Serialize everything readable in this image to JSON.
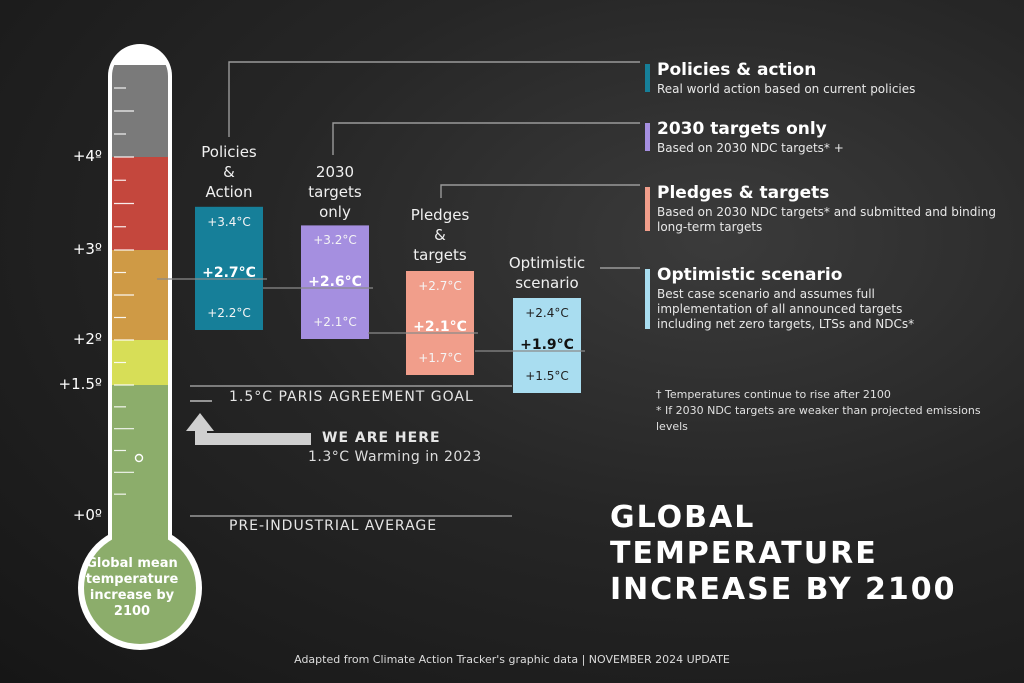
{
  "chart_data": {
    "type": "bar",
    "title": "GLOBAL\nTEMPERATURE\nINCREASE BY 2100",
    "ylim": [
      0,
      5
    ],
    "y_ticks": [
      {
        "value": 0,
        "label": "+0º"
      },
      {
        "value": 1.5,
        "label": "+1.5º"
      },
      {
        "value": 2,
        "label": "+2º"
      },
      {
        "value": 3,
        "label": "+3º"
      },
      {
        "value": 4,
        "label": "+4º"
      }
    ],
    "bands": [
      {
        "from": 0,
        "to": 1.5,
        "color": "#8cad6b"
      },
      {
        "from": 1.5,
        "to": 2,
        "color": "#d7de57"
      },
      {
        "from": 2,
        "to": 3,
        "color": "#cf9a45"
      },
      {
        "from": 3,
        "to": 4,
        "color": "#c4473d"
      },
      {
        "from": 4,
        "to": 5,
        "color": "#7a7a7a"
      }
    ],
    "thermometer_label": "Global mean\ntemperature\nincrease by\n2100",
    "scenarios": [
      {
        "title": "Policies\n&\nAction",
        "low": 2.2,
        "mid": 2.7,
        "high": 3.4,
        "low_label": "+2.2°C",
        "mid_label": "+2.7°C",
        "high_label": "+3.4°C",
        "color": "#167f99"
      },
      {
        "title": "2030\ntargets\nonly",
        "low": 2.1,
        "mid": 2.6,
        "high": 3.2,
        "low_label": "+2.1°C",
        "mid_label": "+2.6°C",
        "high_label": "+3.2°C",
        "color": "#a58fe0"
      },
      {
        "title": "Pledges\n&\ntargets",
        "low": 1.7,
        "mid": 2.1,
        "high": 2.7,
        "low_label": "+1.7°C",
        "mid_label": "+2.1°C",
        "high_label": "+2.7°C",
        "color": "#f19e8b"
      },
      {
        "title": "Optimistic\nscenario",
        "low": 1.5,
        "mid": 1.9,
        "high": 2.4,
        "low_label": "+1.5°C",
        "mid_label": "+1.9°C",
        "high_label": "+2.4°C",
        "color": "#a9ddf0"
      }
    ],
    "reference_lines": [
      {
        "value": 1.5,
        "label": "1.5°C PARIS AGREEMENT GOAL"
      },
      {
        "value": 0,
        "label": "PRE-INDUSTRIAL AVERAGE"
      }
    ],
    "current": {
      "value": 1.3,
      "label": "WE ARE HERE",
      "sublabel": "1.3°C Warming in 2023"
    },
    "legend": [
      {
        "title": "Policies & action",
        "desc": "Real world action based on current policies",
        "color": "#167f99"
      },
      {
        "title": "2030 targets only",
        "desc": "Based on 2030 NDC targets* +",
        "color": "#a58fe0"
      },
      {
        "title": "Pledges & targets",
        "desc": "Based on 2030 NDC targets* and submitted and binding long-term targets",
        "color": "#f19e8b"
      },
      {
        "title": "Optimistic scenario",
        "desc": "Best case scenario and assumes full implementation of all announced targets including net zero targets, LTSs and NDCs*",
        "color": "#a9ddf0"
      }
    ],
    "notes": [
      "† Temperatures continue to rise after 2100",
      "* If 2030 NDC targets are weaker than projected emissions levels"
    ],
    "footer": "Adapted from Climate Action Tracker's graphic data | NOVEMBER 2024 UPDATE"
  }
}
